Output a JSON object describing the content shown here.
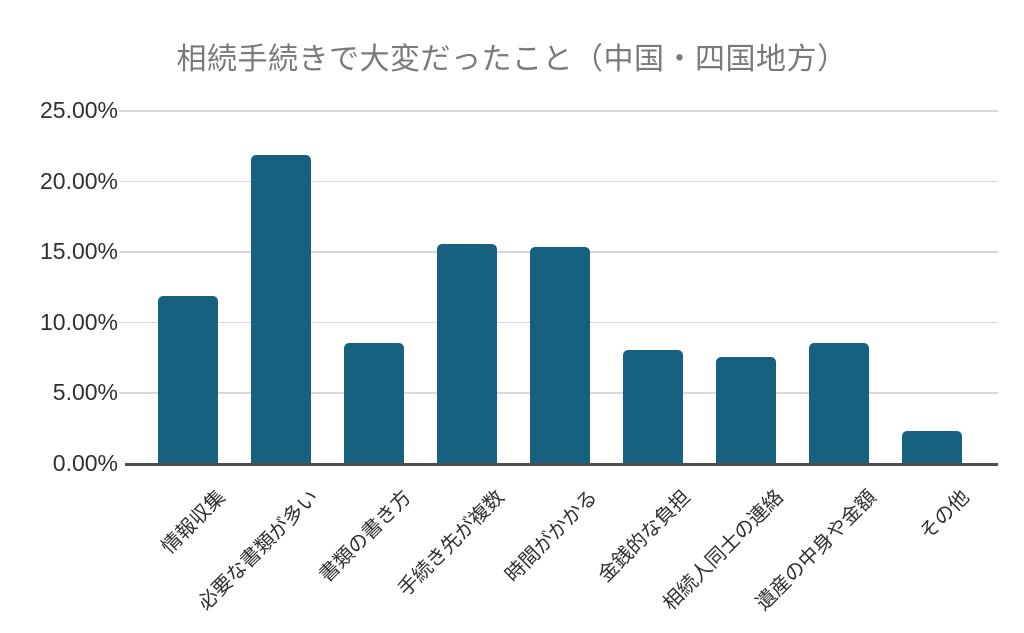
{
  "colors": {
    "background": "#ffffff",
    "bar": "#166180",
    "title_text": "#7a7a7a",
    "axis_text": "#303030",
    "gridline": "#d8d8d8",
    "axis_line": "#4d4d4d"
  },
  "chart_data": {
    "type": "bar",
    "title": "相続手続きで大変だったこと（中国・四国地方）",
    "categories": [
      "情報収集",
      "必要な書類が多い",
      "書類の書き方",
      "手続き先が複数",
      "時間がかかる",
      "金銭的な負担",
      "相続人同士の連絡",
      "遺産の中身や金額",
      "その他"
    ],
    "values": [
      11.8,
      21.8,
      8.5,
      15.5,
      15.3,
      8.0,
      7.5,
      8.5,
      2.3
    ],
    "unit": "%",
    "xlabel": "",
    "ylabel": "",
    "ylim": [
      0,
      25
    ],
    "ytick_step": 5,
    "ytick_labels": [
      "0.00%",
      "5.00%",
      "10.00%",
      "15.00%",
      "20.00%",
      "25.00%"
    ],
    "grid": true,
    "legend_position": "none",
    "x_label_rotation_deg": -45
  }
}
